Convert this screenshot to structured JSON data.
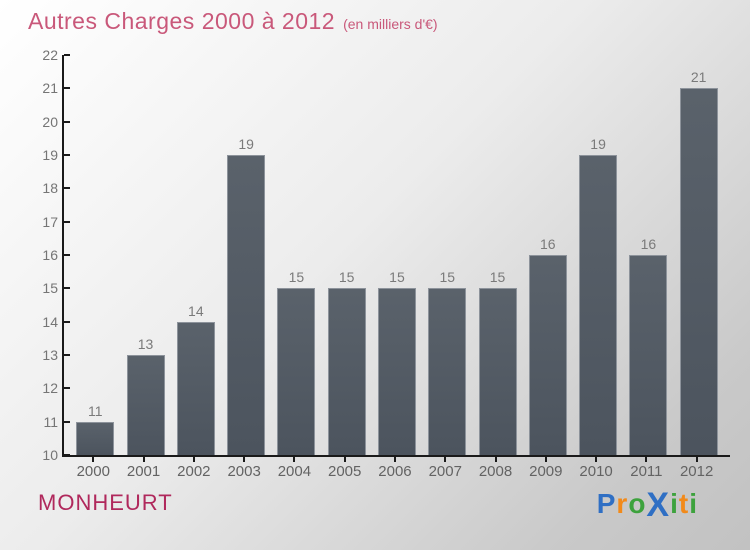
{
  "header": {
    "title": "Autres Charges 2000 à 2012",
    "subtitle": "(en milliers d'€)"
  },
  "chart_data": {
    "type": "bar",
    "categories": [
      "2000",
      "2001",
      "2002",
      "2003",
      "2004",
      "2005",
      "2006",
      "2007",
      "2008",
      "2009",
      "2010",
      "2011",
      "2012"
    ],
    "values": [
      11,
      13,
      14,
      19,
      15,
      15,
      15,
      15,
      15,
      16,
      19,
      16,
      21
    ],
    "title": "Autres Charges 2000 à 2012",
    "subtitle": "(en milliers d'€)",
    "xlabel": "",
    "ylabel": "",
    "ylim": [
      10,
      22
    ],
    "ytick_step": 1,
    "grid": false,
    "legend": "none",
    "value_labels_shown": true
  },
  "footer": {
    "location": "MONHEURT",
    "logo_text": "ProXiti",
    "logo_letters": [
      {
        "ch": "P",
        "color": "#2f6fc4",
        "big": false
      },
      {
        "ch": "r",
        "color": "#f28a1a",
        "big": false
      },
      {
        "ch": "o",
        "color": "#3da23d",
        "big": false
      },
      {
        "ch": "X",
        "color": "#2f6fc4",
        "big": true
      },
      {
        "ch": "i",
        "color": "#3da23d",
        "big": false
      },
      {
        "ch": "t",
        "color": "#f28a1a",
        "big": false
      },
      {
        "ch": "i",
        "color": "#3da23d",
        "big": false
      }
    ]
  },
  "colors": {
    "title_text": "#c9587a",
    "location_text": "#b0285c",
    "axis_line": "#1a1a1a",
    "tick_label": "#757575",
    "value_label": "#7a7a7a",
    "bar_fill_top": "#5a626b",
    "bar_fill_bottom": "#4c545e",
    "bar_border": "#8d939b",
    "background_top": "#ffffff",
    "background_bottom": "#c2c2c2"
  }
}
